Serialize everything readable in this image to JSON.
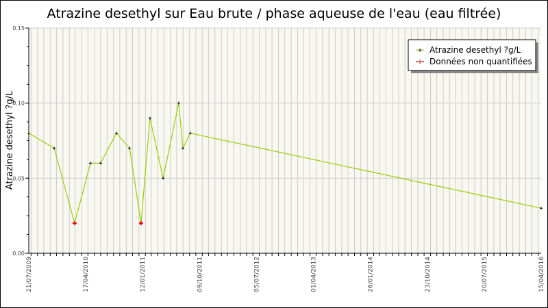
{
  "chart_data": {
    "type": "line",
    "title": "Atrazine desethyl sur Eau brute / phase aqueuse de l'eau (eau filtrée)",
    "xlabel": "",
    "ylabel": "Atrazine desethyl ?g/L",
    "ylim": [
      0,
      0.15
    ],
    "yticks": [
      "0.00",
      "0.05",
      "0.10",
      "0.15"
    ],
    "xlim": [
      "2009-07-21",
      "2016-04-15"
    ],
    "xtick_labels": [
      "21/07/2009",
      "17/04/2010",
      "12/01/2011",
      "09/10/2011",
      "05/07/2012",
      "01/04/2013",
      "26/01/2014",
      "23/10/2014",
      "20/07/2015",
      "15/04/2016"
    ],
    "grid": true,
    "legend_position": "top-right",
    "series": [
      {
        "name": "Atrazine desethyl ?g/L",
        "color": "#99cc00",
        "x": [
          "2009-07-21",
          "2009-11-20",
          "2010-02-26",
          "2010-05-13",
          "2010-07-01",
          "2010-09-15",
          "2010-11-17",
          "2011-01-11",
          "2011-02-23",
          "2011-04-27",
          "2011-07-11",
          "2011-07-31",
          "2011-09-04",
          "2016-04-15"
        ],
        "y": [
          0.08,
          0.07,
          0.02,
          0.06,
          0.06,
          0.08,
          0.07,
          0.02,
          0.09,
          0.05,
          0.1,
          0.07,
          0.08,
          0.03
        ],
        "non_quantified": [
          false,
          false,
          true,
          false,
          false,
          false,
          false,
          true,
          false,
          false,
          false,
          false,
          false,
          false
        ]
      }
    ],
    "legend": [
      {
        "label": "Atrazine desethyl ?g/L",
        "marker_color": "#000000"
      },
      {
        "label": "Données non quantifiées",
        "marker_color": "#ff0000"
      }
    ],
    "plot_background": "#f8f8f0"
  }
}
